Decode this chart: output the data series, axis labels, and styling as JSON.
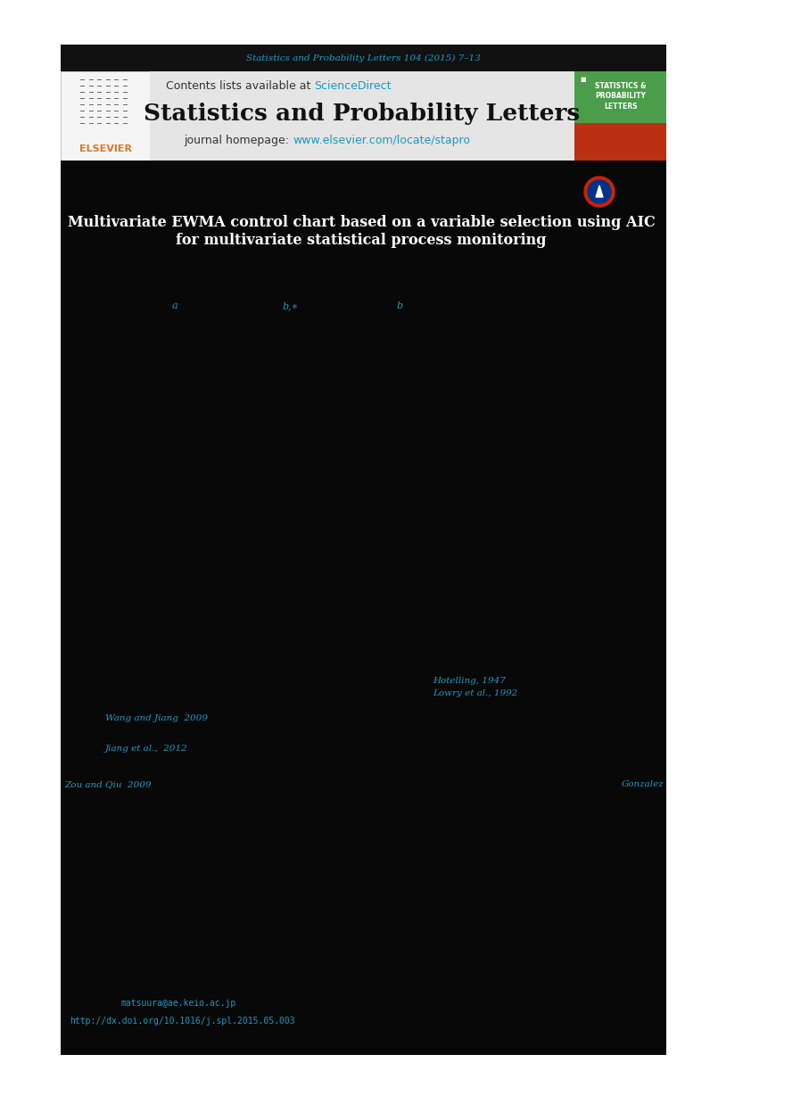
{
  "page_bg": "#ffffff",
  "black": "#000000",
  "dark_banner": "#111111",
  "article_bg": "#0a0a0a",
  "header_gray": "#e0e0e0",
  "cyan_color": "#1a9bbf",
  "orange_color": "#e07820",
  "journal_subtitle": "Statistics and Probability Letters 104 (2015) 7–13",
  "journal_title_text": "Statistics and Probability Letters",
  "contents_text": "Contents lists available at ",
  "sciencedirect_text": "ScienceDirect",
  "homepage_text": "journal homepage: ",
  "homepage_url": "www.elsevier.com/locate/stapro",
  "author_a": "a",
  "author_b_star": "b,∗",
  "author_b": "b",
  "ref1": "Hotelling, 1947",
  "ref2": "Lowry et al., 1992",
  "ref3": "Wang and Jiang  2009",
  "ref4": "Jiang et al.,  2012",
  "ref5": "Zou and Qiu  2009",
  "ref6": "Gonzalez",
  "email": "matsuura@ae.keio.ac.jp",
  "doi": "http://dx.doi.org/10.1016/j.spl.2015.05.003",
  "elsevier_text": "ELSEVIER",
  "cover_green": "#3a8c3a",
  "cover_red": "#c03010",
  "cover_title": "STATISTICS &\nPROBABILITY\nLETTERS",
  "medal_red": "#cc2200",
  "medal_blue": "#003388",
  "medal_white": "#ffffff"
}
